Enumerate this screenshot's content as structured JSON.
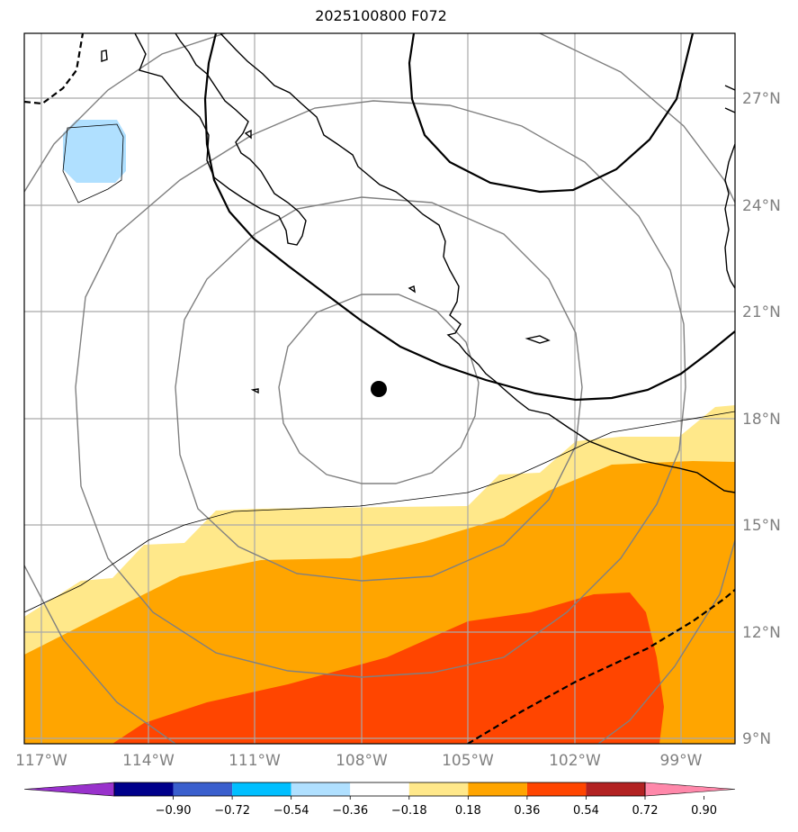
{
  "title": "2025100800 F072",
  "longitude_labels": [
    "117°W",
    "114°W",
    "111°W",
    "108°W",
    "105°W",
    "102°W",
    "99°W"
  ],
  "latitude_labels": [
    "27°N",
    "24°N",
    "21°N",
    "18°N",
    "15°N",
    "12°N",
    "9°N"
  ],
  "colorbar": {
    "tick_labels": [
      "−0.90",
      "−0.72",
      "−0.54",
      "−0.36",
      "−0.18",
      "0.18",
      "0.36",
      "0.54",
      "0.72",
      "0.90"
    ],
    "colors": [
      "#9932cc",
      "#00008b",
      "#3a5fcd",
      "#00bfff",
      "#b0e0ff",
      "#ffffff",
      "#ffe88a",
      "#ffa500",
      "#ff4500",
      "#b22222",
      "#ff88aa"
    ]
  },
  "map": {
    "center_marker": "storm-center",
    "field_colors": {
      "weak_positive": "#ffe88a",
      "positive": "#ffa500",
      "strong_positive": "#ff4500",
      "weak_negative": "#b0e0ff"
    }
  }
}
